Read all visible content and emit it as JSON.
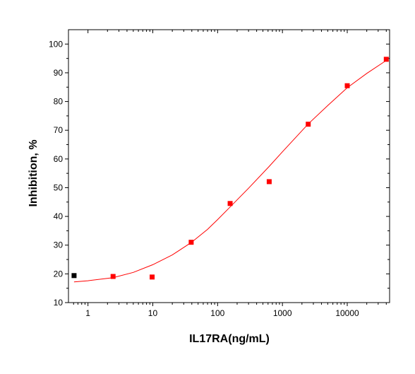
{
  "chart_data": {
    "type": "scatter",
    "xlabel": "IL17RA(ng/mL)",
    "ylabel": "Inhibition, %",
    "x_scale": "log",
    "xlim": [
      0.5,
      45000
    ],
    "ylim": [
      10,
      105
    ],
    "x_ticks": [
      1,
      10,
      100,
      1000,
      10000
    ],
    "x_tick_labels": [
      "1",
      "10",
      "100",
      "1000",
      "10000"
    ],
    "y_ticks": [
      10,
      20,
      30,
      40,
      50,
      60,
      70,
      80,
      90,
      100
    ],
    "y_tick_labels": [
      "10",
      "20",
      "30",
      "40",
      "50",
      "60",
      "70",
      "80",
      "90",
      "100"
    ],
    "grid": false,
    "points": [
      {
        "x": 0.61,
        "y": 19.4,
        "color": "#000000"
      },
      {
        "x": 2.44,
        "y": 19.1,
        "color": "#ff0000"
      },
      {
        "x": 9.77,
        "y": 18.9,
        "color": "#ff0000"
      },
      {
        "x": 39.1,
        "y": 31.0,
        "color": "#ff0000"
      },
      {
        "x": 156,
        "y": 44.5,
        "color": "#ff0000"
      },
      {
        "x": 625,
        "y": 52.1,
        "color": "#ff0000"
      },
      {
        "x": 2500,
        "y": 72.1,
        "color": "#ff0000"
      },
      {
        "x": 10000,
        "y": 85.5,
        "color": "#ff0000"
      },
      {
        "x": 40000,
        "y": 94.7,
        "color": "#ff0000"
      }
    ],
    "fit_curve": {
      "color": "#ff0000",
      "x": [
        0.61,
        1,
        2.44,
        5,
        10,
        20,
        39.1,
        70,
        100,
        156,
        300,
        625,
        1000,
        2500,
        5000,
        10000,
        20000,
        40000
      ],
      "y": [
        17.2,
        17.6,
        18.7,
        20.5,
        23.2,
        26.6,
        30.9,
        35.5,
        38.9,
        43.3,
        49.8,
        57.4,
        62.5,
        72.2,
        78.6,
        84.8,
        89.8,
        94.3
      ]
    }
  }
}
